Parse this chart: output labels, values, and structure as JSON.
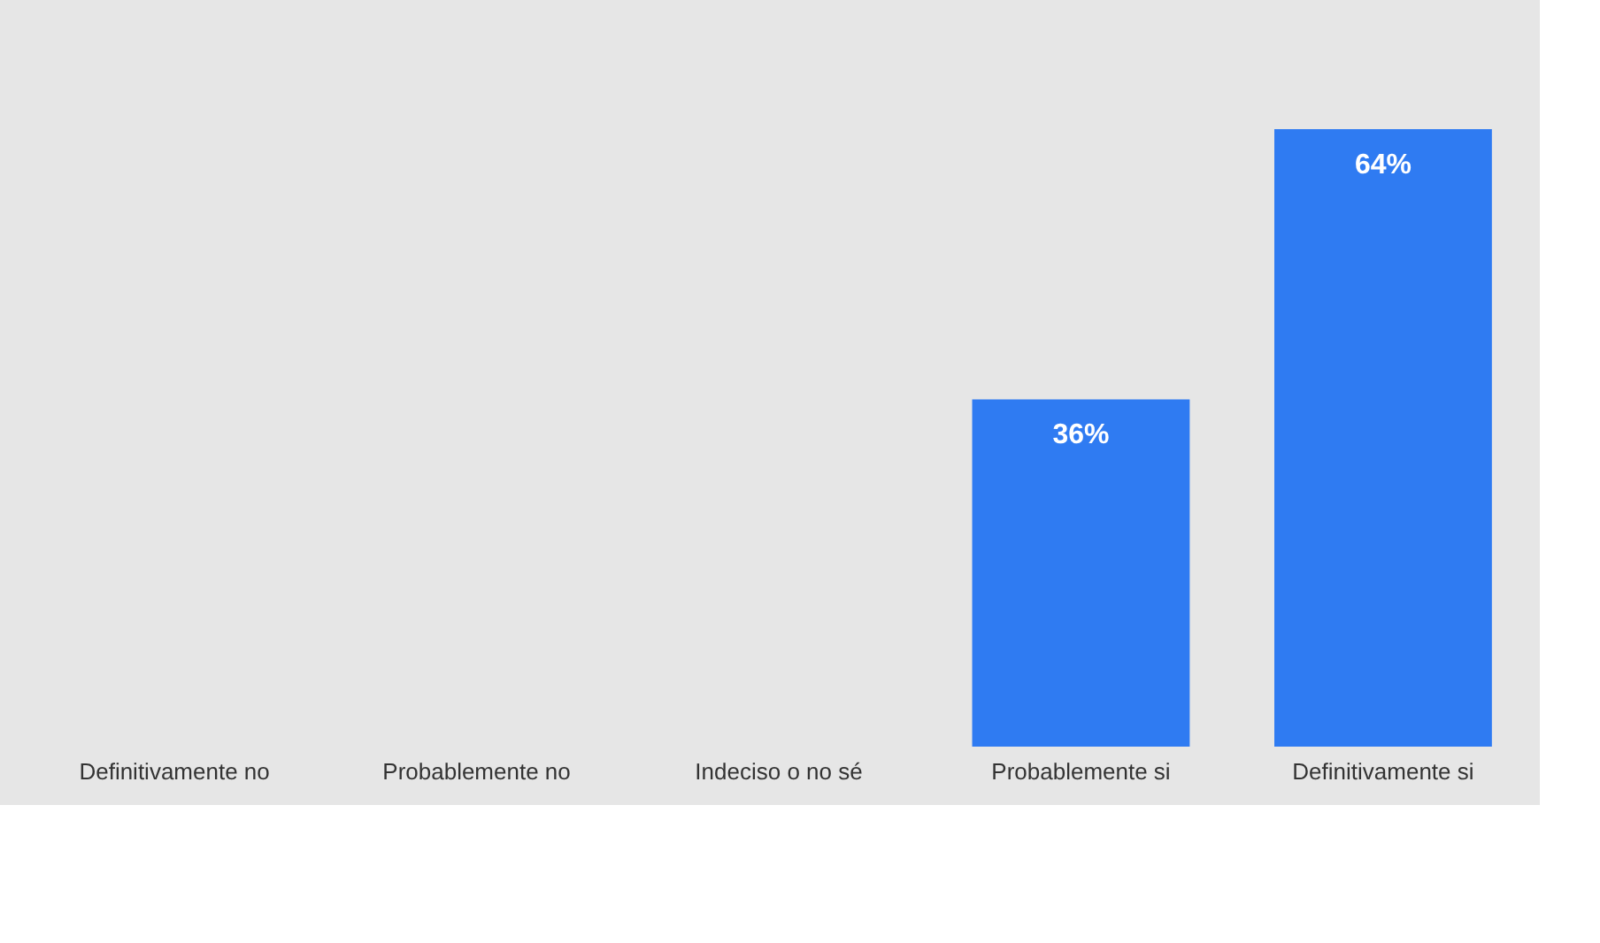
{
  "chart_data": {
    "type": "bar",
    "categories": [
      "Definitivamente no",
      "Probablemente no",
      "Indeciso o no sé",
      "Probablemente si",
      "Definitivamente si"
    ],
    "values": [
      0,
      0,
      0,
      36,
      64
    ],
    "value_labels": [
      null,
      null,
      null,
      "36%",
      "64%"
    ],
    "color": "#2f7bf2"
  }
}
